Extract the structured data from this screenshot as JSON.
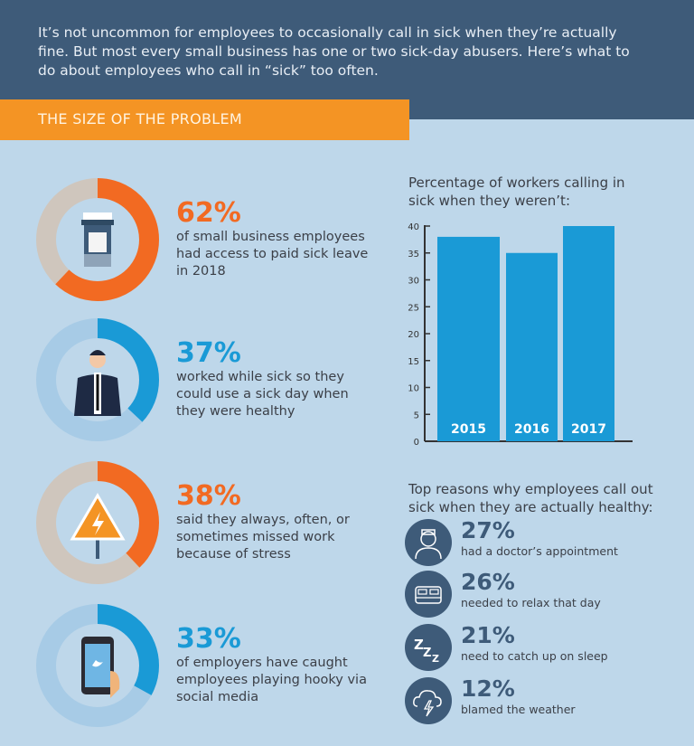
{
  "intro": "It’s not uncommon for employees to occasionally call in sick when they’re actually fine. But most every small business has one or two sick-day abusers. Here’s what to do about employees who call in “sick” too often.",
  "section_title": "THE SIZE OF THE PROBLEM",
  "colors": {
    "header": "#3e5b79",
    "banner": "#f49424",
    "orange": "#f26a22",
    "blue": "#1a9ad6",
    "beige": "#cfc6bd",
    "light_blue": "#a7cbe6",
    "bar": "#1a9ad6"
  },
  "stats": [
    {
      "percent": "62%",
      "value": 62,
      "text": "of small business employees had access to paid sick leave in 2018",
      "color": "orange",
      "icon": "pill-bottle-icon"
    },
    {
      "percent": "37%",
      "value": 37,
      "text": "worked while sick so they could use a sick day when they were healthy",
      "color": "blue",
      "icon": "businessman-icon"
    },
    {
      "percent": "38%",
      "value": 38,
      "text": "said they always, often, or sometimes missed work because of stress",
      "color": "orange",
      "icon": "warning-sign-icon"
    },
    {
      "percent": "33%",
      "value": 33,
      "text": "of employers have caught employees playing hooky via social media",
      "color": "blue",
      "icon": "smartphone-icon"
    }
  ],
  "chart_data": {
    "type": "bar",
    "title": "Percentage of workers calling in sick when they weren’t:",
    "categories": [
      "2015",
      "2016",
      "2017"
    ],
    "values": [
      38,
      35,
      40
    ],
    "ylim": [
      0,
      40
    ],
    "yticks": [
      "0",
      "5",
      "10",
      "15",
      "20",
      "25",
      "30",
      "35",
      "40"
    ],
    "xlabel": "",
    "ylabel": "",
    "grid": false
  },
  "reasons_title": "Top reasons why employees call out sick when they are actually healthy:",
  "reasons": [
    {
      "percent": "27%",
      "text": "had a doctor’s appointment",
      "icon": "doctor-icon"
    },
    {
      "percent": "26%",
      "text": "needed to relax that day",
      "icon": "bed-icon"
    },
    {
      "percent": "21%",
      "text": "need to catch up on sleep",
      "icon": "sleep-zzz-icon"
    },
    {
      "percent": "12%",
      "text": "blamed the weather",
      "icon": "storm-cloud-icon"
    }
  ]
}
